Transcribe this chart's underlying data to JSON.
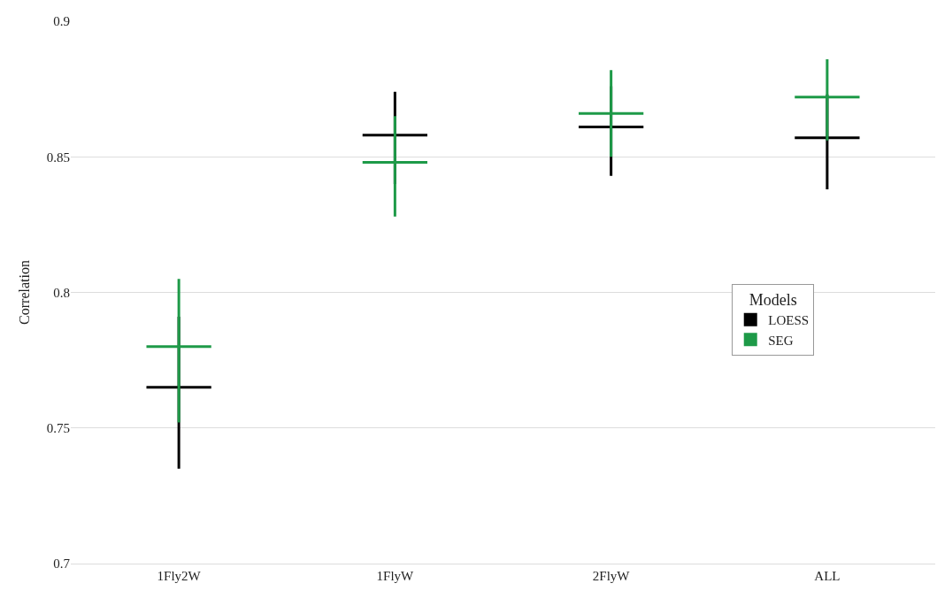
{
  "chart_data": {
    "type": "box",
    "ylabel": "Correlation",
    "legend_title": "Models",
    "categories": [
      "1Fly2W",
      "1FlyW",
      "2FlyW",
      "ALL"
    ],
    "series": [
      {
        "name": "LOESS",
        "color": "#000000",
        "boxes": [
          {
            "low": 0.735,
            "q1": 0.765,
            "median": 0.765,
            "q3": 0.765,
            "high": 0.791
          },
          {
            "low": 0.84,
            "q1": 0.858,
            "median": 0.858,
            "q3": 0.858,
            "high": 0.874
          },
          {
            "low": 0.843,
            "q1": 0.861,
            "median": 0.861,
            "q3": 0.861,
            "high": 0.876
          },
          {
            "low": 0.838,
            "q1": 0.857,
            "median": 0.857,
            "q3": 0.857,
            "high": 0.873
          }
        ]
      },
      {
        "name": "SEG",
        "color": "#1e9a48",
        "boxes": [
          {
            "low": 0.752,
            "q1": 0.78,
            "median": 0.78,
            "q3": 0.78,
            "high": 0.805
          },
          {
            "low": 0.828,
            "q1": 0.848,
            "median": 0.848,
            "q3": 0.848,
            "high": 0.865
          },
          {
            "low": 0.85,
            "q1": 0.866,
            "median": 0.866,
            "q3": 0.866,
            "high": 0.882
          },
          {
            "low": 0.856,
            "q1": 0.872,
            "median": 0.872,
            "q3": 0.872,
            "high": 0.886
          }
        ]
      }
    ],
    "ylim": [
      0.7,
      0.9
    ],
    "yticks": [
      0.7,
      0.75,
      0.8,
      0.85,
      0.9
    ],
    "grid": "y",
    "legend": "right"
  }
}
